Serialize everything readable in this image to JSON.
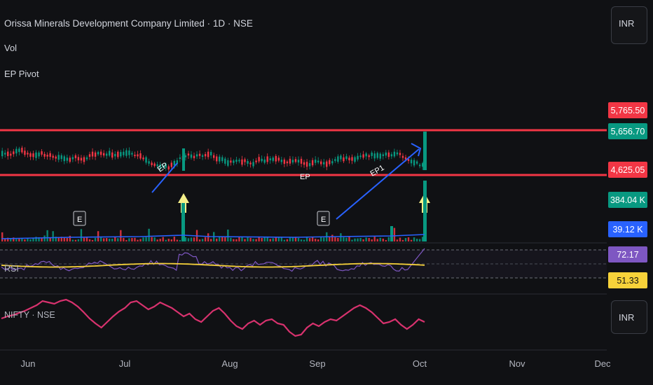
{
  "header": {
    "symbol_title": "Orissa Minerals Development Company Limited · 1D · NSE",
    "vol_label": "Vol",
    "pivot_label": "EP Pivot",
    "currency": "INR"
  },
  "price_scale": {
    "labels": [
      {
        "text": "5,765.50",
        "color": "#f23645"
      },
      {
        "text": "5,656.70",
        "color": "#089981"
      },
      {
        "text": "4,625.05",
        "color": "#f23645"
      },
      {
        "text": "384.04 K",
        "color": "#089981"
      },
      {
        "text": "39.12 K",
        "color": "#2962ff"
      },
      {
        "text": "72.17",
        "color": "#7e57c2"
      },
      {
        "text": "51.33",
        "color": "#f7d23a"
      }
    ]
  },
  "panes": {
    "rsi_label": "RSI",
    "compare_label": "NIFTY · NSE",
    "compare_currency": "INR"
  },
  "markers": {
    "earnings": "E",
    "ep": "EP",
    "ep1": "EP1"
  },
  "colors": {
    "background": "#101114",
    "up": "#089981",
    "down": "#f23645",
    "rsi": "#7e57c2",
    "rsi_ma": "#f7d23a",
    "nifty": "#d8326e",
    "trend_arrow": "#2962ff",
    "pivot_arrow": "#f4f08a"
  },
  "chart_data": [
    {
      "type": "line",
      "name": "price",
      "x_axis_labels": [
        "Jun",
        "Jul",
        "Aug",
        "Sep",
        "Oct",
        "Nov",
        "Dec"
      ],
      "levels": [
        5765.5,
        4625.05
      ],
      "last_close": 5656.7,
      "note_points": [
        "EP",
        "EP",
        "EP1"
      ]
    },
    {
      "type": "bar",
      "name": "volume",
      "last_value": "384.04 K",
      "average": "39.12 K"
    },
    {
      "type": "line",
      "name": "RSI",
      "series": [
        {
          "name": "RSI",
          "last": 72.17
        },
        {
          "name": "RSI MA",
          "last": 51.33
        }
      ]
    },
    {
      "type": "line",
      "name": "NIFTY · NSE"
    }
  ]
}
